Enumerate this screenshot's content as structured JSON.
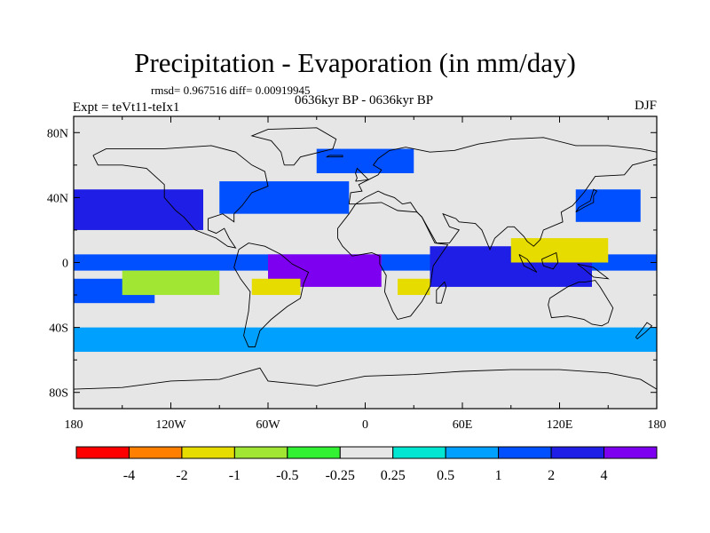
{
  "title": "Precipitation - Evaporation (in mm/day)",
  "stats": "rmsd= 0.967516 diff= 0.00919945",
  "period": "0636kyr BP - 0636kyr BP",
  "experiment": "Expt = teVt11-teIx1",
  "season": "DJF",
  "chart_data": {
    "type": "heatmap",
    "projection": "equirectangular",
    "lon_range": [
      -180,
      180
    ],
    "lat_range": [
      -90,
      90
    ],
    "x_ticks": [
      {
        "value": -180,
        "label": "180"
      },
      {
        "value": -120,
        "label": "120W"
      },
      {
        "value": -60,
        "label": "60W"
      },
      {
        "value": 0,
        "label": "0"
      },
      {
        "value": 60,
        "label": "60E"
      },
      {
        "value": 120,
        "label": "120E"
      },
      {
        "value": 180,
        "label": "180"
      }
    ],
    "y_ticks": [
      {
        "value": 80,
        "label": "80N"
      },
      {
        "value": 40,
        "label": "40N"
      },
      {
        "value": 0,
        "label": "0"
      },
      {
        "value": -40,
        "label": "40S"
      },
      {
        "value": -80,
        "label": "80S"
      }
    ],
    "colorbar": {
      "colors": [
        "#ff0000",
        "#ff8000",
        "#e6dc00",
        "#a0e632",
        "#32f032",
        "#e6e6e6",
        "#00e6d2",
        "#00a0ff",
        "#0050ff",
        "#1e1ee6",
        "#7d00f0"
      ],
      "labels": [
        "-4",
        "-2",
        "-1",
        "-0.5",
        "-0.25",
        "0.25",
        "0.5",
        "1",
        "2",
        "4"
      ]
    },
    "fields": [
      {
        "lon": [
          -180,
          180
        ],
        "lat": [
          -5,
          5
        ],
        "value": 1
      },
      {
        "lon": [
          -180,
          -100
        ],
        "lat": [
          20,
          45
        ],
        "value": 2
      },
      {
        "lon": [
          -90,
          -10
        ],
        "lat": [
          30,
          50
        ],
        "value": 1
      },
      {
        "lon": [
          -180,
          -130
        ],
        "lat": [
          -25,
          -10
        ],
        "value": 1
      },
      {
        "lon": [
          -150,
          -90
        ],
        "lat": [
          -20,
          -5
        ],
        "value": -1
      },
      {
        "lon": [
          -60,
          10
        ],
        "lat": [
          -15,
          5
        ],
        "value": 4
      },
      {
        "lon": [
          40,
          100
        ],
        "lat": [
          -15,
          10
        ],
        "value": 2
      },
      {
        "lon": [
          -70,
          -40
        ],
        "lat": [
          -20,
          -10
        ],
        "value": -2
      },
      {
        "lon": [
          20,
          40
        ],
        "lat": [
          -20,
          -10
        ],
        "value": -2
      },
      {
        "lon": [
          90,
          150
        ],
        "lat": [
          0,
          15
        ],
        "value": -2
      },
      {
        "lon": [
          100,
          140
        ],
        "lat": [
          -15,
          0
        ],
        "value": 2
      },
      {
        "lon": [
          -180,
          180
        ],
        "lat": [
          -55,
          -40
        ],
        "value": 0.5
      },
      {
        "lon": [
          -30,
          30
        ],
        "lat": [
          55,
          70
        ],
        "value": 1
      },
      {
        "lon": [
          130,
          170
        ],
        "lat": [
          25,
          45
        ],
        "value": 1
      }
    ]
  }
}
